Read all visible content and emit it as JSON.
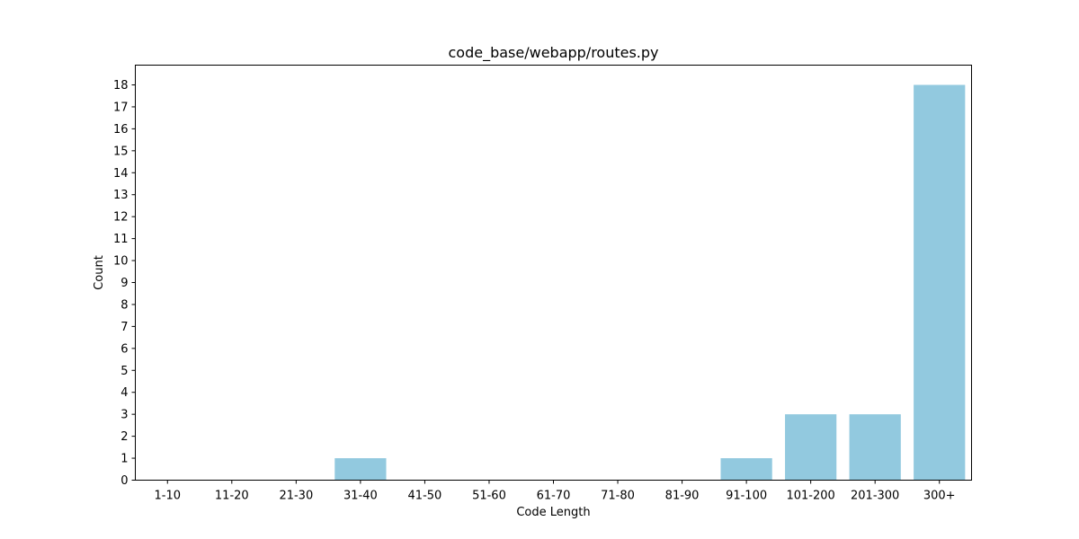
{
  "chart_data": {
    "type": "bar",
    "title": "code_base/webapp/routes.py",
    "xlabel": "Code Length",
    "ylabel": "Count",
    "categories": [
      "1-10",
      "11-20",
      "21-30",
      "31-40",
      "41-50",
      "51-60",
      "61-70",
      "71-80",
      "81-90",
      "91-100",
      "101-200",
      "201-300",
      "300+"
    ],
    "values": [
      0,
      0,
      0,
      1,
      0,
      0,
      0,
      0,
      0,
      1,
      3,
      3,
      18
    ],
    "ylim": [
      0,
      18.9
    ],
    "yticks": [
      0,
      1,
      2,
      3,
      4,
      5,
      6,
      7,
      8,
      9,
      10,
      11,
      12,
      13,
      14,
      15,
      16,
      17,
      18
    ],
    "grid": false,
    "bar_color": "#92c9df"
  }
}
